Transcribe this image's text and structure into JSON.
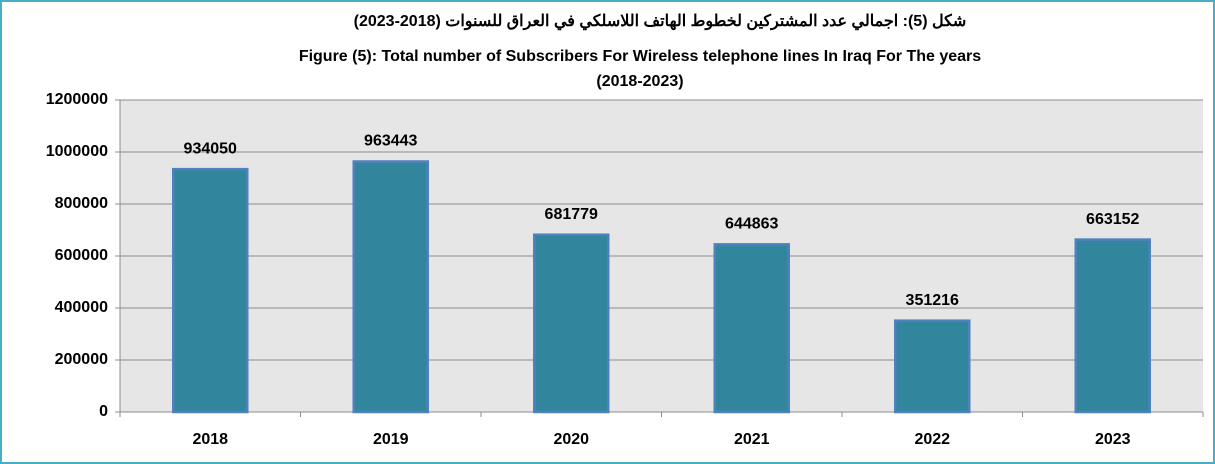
{
  "chart_data": {
    "type": "bar",
    "title": [
      "شكل (5): اجمالي عدد المشتركين لخطوط الهاتف اللاسلكي في العراق للسنوات (2018-2023)",
      "Figure (5): Total  number of Subscribers For Wireless telephone  lines In Iraq For The years",
      "(2018-2023)"
    ],
    "categories": [
      "2018",
      "2019",
      "2020",
      "2021",
      "2022",
      "2023"
    ],
    "values": [
      934050,
      963443,
      681779,
      644863,
      351216,
      663152
    ],
    "color": "#31859c",
    "ylim": [
      0,
      1200000
    ],
    "yticks": [
      0,
      200000,
      400000,
      600000,
      800000,
      1000000,
      1200000
    ],
    "grid": true
  }
}
